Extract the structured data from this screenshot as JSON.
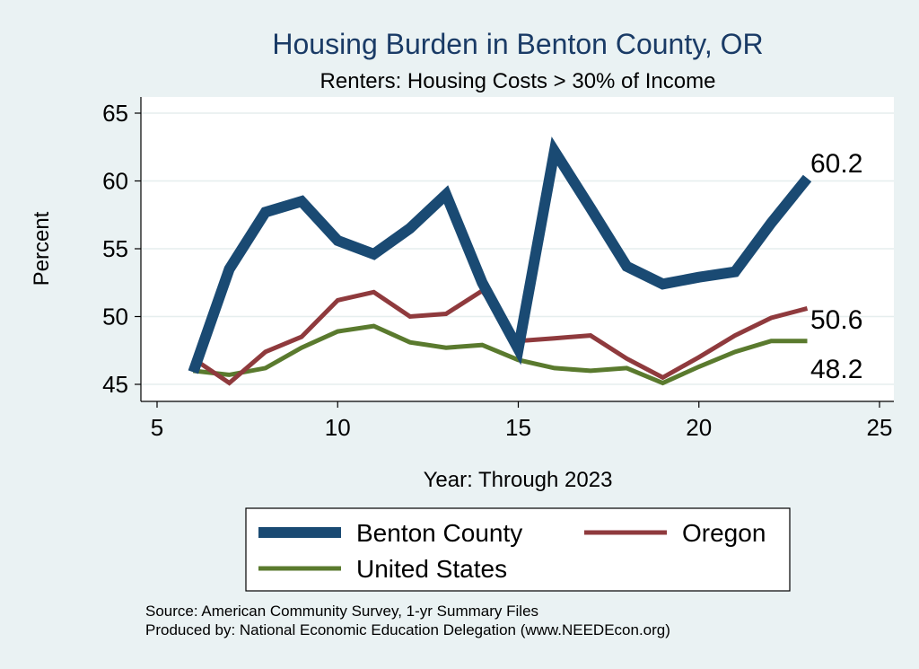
{
  "chart_data": {
    "type": "line",
    "title": "Housing Burden in Benton County, OR",
    "subtitle": "Renters: Housing Costs > 30% of Income",
    "xlabel": "Year: Through 2023",
    "ylabel": "Percent",
    "xlim": [
      5,
      25
    ],
    "ylim": [
      44.5,
      66
    ],
    "xticks": [
      5,
      10,
      15,
      20,
      25
    ],
    "yticks": [
      45,
      50,
      55,
      60,
      65
    ],
    "grid": true,
    "legend_position": "bottom",
    "series": [
      {
        "name": "Benton County",
        "color": "#1a4a73",
        "x": [
          6,
          7,
          8,
          9,
          10,
          11,
          12,
          13,
          14,
          15,
          16,
          17,
          18,
          19,
          20,
          21,
          22,
          23
        ],
        "y": [
          45.9,
          53.5,
          57.7,
          58.5,
          55.6,
          54.6,
          56.5,
          59.0,
          52.5,
          47.6,
          62.2,
          58.0,
          53.7,
          52.4,
          52.9,
          53.3,
          56.9,
          60.2
        ],
        "end_label": "60.2"
      },
      {
        "name": "Oregon",
        "color": "#8f3a3d",
        "x": [
          6,
          7,
          8,
          9,
          10,
          11,
          12,
          13,
          14,
          15,
          16,
          17,
          18,
          19,
          20,
          21,
          22,
          23
        ],
        "y": [
          46.9,
          45.1,
          47.4,
          48.5,
          51.2,
          51.8,
          50.0,
          50.2,
          51.9,
          48.2,
          48.4,
          48.6,
          46.9,
          45.5,
          47.0,
          48.6,
          49.9,
          50.6
        ],
        "end_label": "50.6"
      },
      {
        "name": "United States",
        "color": "#5a7a2e",
        "x": [
          6,
          7,
          8,
          9,
          10,
          11,
          12,
          13,
          14,
          15,
          16,
          17,
          18,
          19,
          20,
          21,
          22,
          23
        ],
        "y": [
          46.0,
          45.7,
          46.2,
          47.7,
          48.9,
          49.3,
          48.1,
          47.7,
          47.9,
          46.8,
          46.2,
          46.0,
          46.2,
          45.1,
          46.3,
          47.4,
          48.2,
          48.2
        ],
        "end_label": "48.2"
      }
    ]
  },
  "notes": {
    "source": "Source: American Community Survey, 1-yr Summary Files",
    "producer": "Produced by: National Economic Education Delegation (www.NEEDEcon.org)"
  }
}
